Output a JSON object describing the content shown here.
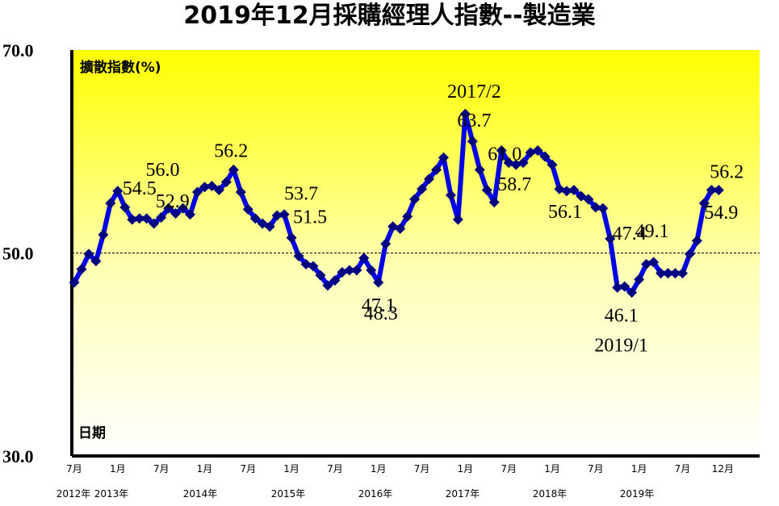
{
  "chart_data": {
    "type": "line",
    "title": "2019年12月採購經理人指數--製造業",
    "ylabel": "擴散指數(%)",
    "xlabel": "日期",
    "ylim": [
      30,
      70
    ],
    "y_ticks": [
      "30.0",
      "50.0",
      "70.0"
    ],
    "reference_line": 50,
    "x_tick_labels": [
      "7月",
      "1月",
      "7月",
      "1月",
      "7月",
      "1月",
      "7月",
      "1月",
      "7月",
      "1月",
      "7月",
      "1月",
      "7月",
      "1月",
      "7月",
      "12月"
    ],
    "x_year_labels": [
      "2012年",
      "2013年",
      "2014年",
      "2015年",
      "2016年",
      "2017年",
      "2018年",
      "2019年"
    ],
    "x": [
      "2012/7",
      "2012/8",
      "2012/9",
      "2012/10",
      "2012/11",
      "2012/12",
      "2013/1",
      "2013/2",
      "2013/3",
      "2013/4",
      "2013/5",
      "2013/6",
      "2013/7",
      "2013/8",
      "2013/9",
      "2013/10",
      "2013/11",
      "2013/12",
      "2014/1",
      "2014/2",
      "2014/3",
      "2014/4",
      "2014/5",
      "2014/6",
      "2014/7",
      "2014/8",
      "2014/9",
      "2014/10",
      "2014/11",
      "2014/12",
      "2015/1",
      "2015/2",
      "2015/3",
      "2015/4",
      "2015/5",
      "2015/6",
      "2015/7",
      "2015/8",
      "2015/9",
      "2015/10",
      "2015/11",
      "2015/12",
      "2016/1",
      "2016/2",
      "2016/3",
      "2016/4",
      "2016/5",
      "2016/6",
      "2016/7",
      "2016/8",
      "2016/9",
      "2016/10",
      "2016/11",
      "2016/12",
      "2017/1",
      "2017/2",
      "2017/3",
      "2017/4",
      "2017/5",
      "2017/6",
      "2017/7",
      "2017/8",
      "2017/9",
      "2017/10",
      "2017/11",
      "2017/12",
      "2018/1",
      "2018/2",
      "2018/3",
      "2018/4",
      "2018/5",
      "2018/6",
      "2018/7",
      "2018/8",
      "2018/9",
      "2018/10",
      "2018/11",
      "2018/12",
      "2019/1",
      "2019/2",
      "2019/3",
      "2019/4",
      "2019/5",
      "2019/6",
      "2019/7",
      "2019/8",
      "2019/9",
      "2019/10",
      "2019/11",
      "2019/12"
    ],
    "series": [
      {
        "color": "#0000e6",
        "marker_color": "#000080",
        "values": [
          47.1,
          48.4,
          49.9,
          49.2,
          51.8,
          54.9,
          56.1,
          54.5,
          53.3,
          53.4,
          53.4,
          52.9,
          53.5,
          54.4,
          53.9,
          54.4,
          53.8,
          56.0,
          56.5,
          56.6,
          56.2,
          57.0,
          58.2,
          56.0,
          54.3,
          53.4,
          52.9,
          52.6,
          53.7,
          53.8,
          51.5,
          49.7,
          48.9,
          48.7,
          47.8,
          46.8,
          47.3,
          48.1,
          48.3,
          48.3,
          49.5,
          48.3,
          47.1,
          50.9,
          52.6,
          52.4,
          53.6,
          55.3,
          56.3,
          57.3,
          58.2,
          59.4,
          55.7,
          53.3,
          63.7,
          61.0,
          58.2,
          56.2,
          55.0,
          60.1,
          58.9,
          58.7,
          58.9,
          59.9,
          60.1,
          59.5,
          58.7,
          56.3,
          56.1,
          56.2,
          55.6,
          55.3,
          54.5,
          54.4,
          51.4,
          46.6,
          46.7,
          46.1,
          47.4,
          48.9,
          49.1,
          48.0,
          48.0,
          48.0,
          48.0,
          49.9,
          51.2,
          54.9,
          56.2,
          56.2
        ]
      }
    ],
    "annotations": [
      "54.5",
      "52.9",
      "56.0",
      "56.2",
      "53.7",
      "51.5",
      "48.3",
      "47.1",
      "2017/2",
      "63.7",
      "61.0",
      "58.7",
      "56.1",
      "47.4",
      "49.1",
      "46.1",
      "2019/1",
      "56.2",
      "54.9"
    ]
  }
}
